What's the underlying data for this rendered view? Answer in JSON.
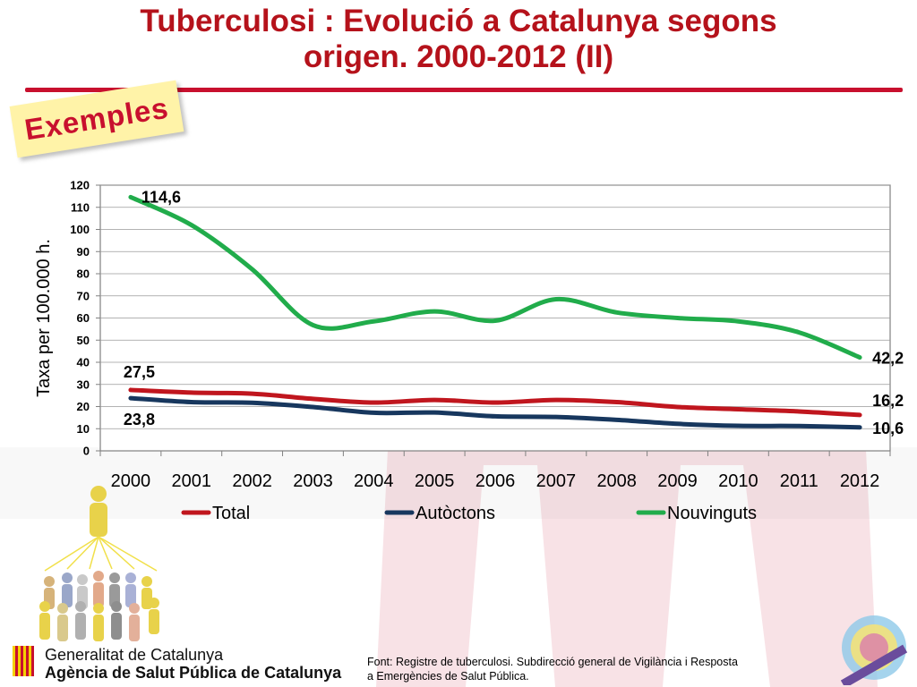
{
  "slide": {
    "title_line1": "Tuberculosi : Evolució a Catalunya segons",
    "title_line2": "origen. 2000-2012 (II)",
    "badge": "Exemples",
    "source_line1": "Font: Registre de tuberculosi. Subdirecció general de Vigilància i Resposta",
    "source_line2": "a Emergències de Salut Pública."
  },
  "logo": {
    "line1": "Generalitat de Catalunya",
    "line2": "Agència de Salut Pública de Catalunya"
  },
  "colors": {
    "title": "#b5121b",
    "accent_rule": "#c8102e",
    "total": "#c0161e",
    "autoctons": "#17375e",
    "nouvinguts": "#21ac4b"
  },
  "chart_data": {
    "type": "line",
    "title": "",
    "xlabel": "",
    "ylabel": "Taxa per 100.000 h.",
    "ylim": [
      0,
      120
    ],
    "yticks": [
      0,
      10,
      20,
      30,
      40,
      50,
      60,
      70,
      80,
      90,
      100,
      110,
      120
    ],
    "categories": [
      "2000",
      "2001",
      "2002",
      "2003",
      "2004",
      "2005",
      "2006",
      "2007",
      "2008",
      "2009",
      "2010",
      "2011",
      "2012"
    ],
    "grid": true,
    "legend": "bottom",
    "series": [
      {
        "name": "Total",
        "values": [
          27.5,
          26.3,
          25.8,
          23.5,
          21.8,
          23.0,
          21.8,
          23.0,
          22.0,
          19.8,
          18.8,
          17.8,
          16.2
        ],
        "labels": [
          {
            "index": 0,
            "text": "27,5",
            "pos": "above"
          },
          {
            "index": 12,
            "text": "16,2",
            "pos": "right-above"
          }
        ]
      },
      {
        "name": "Autòctons",
        "values": [
          23.8,
          22.0,
          21.7,
          19.8,
          17.2,
          17.3,
          15.6,
          15.3,
          14.0,
          12.2,
          11.3,
          11.2,
          10.6
        ],
        "labels": [
          {
            "index": 0,
            "text": "23,8",
            "pos": "below"
          },
          {
            "index": 12,
            "text": "10,6",
            "pos": "right"
          }
        ]
      },
      {
        "name": "Nouvinguts",
        "values": [
          114.6,
          102.0,
          82.0,
          56.8,
          58.5,
          63.0,
          58.8,
          68.5,
          62.5,
          60.0,
          58.5,
          53.5,
          42.2
        ],
        "labels": [
          {
            "index": 0,
            "text": "114,6",
            "pos": "right"
          },
          {
            "index": 12,
            "text": "42,2",
            "pos": "right"
          }
        ]
      }
    ]
  }
}
